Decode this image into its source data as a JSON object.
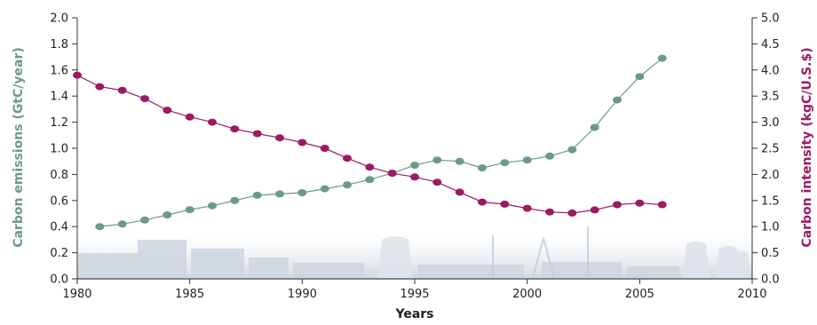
{
  "chart_data": {
    "type": "line",
    "xlabel": "Years",
    "xlim": [
      1980,
      2010
    ],
    "xticks": [
      1980,
      1985,
      1990,
      1995,
      2000,
      2005,
      2010
    ],
    "y_left": {
      "label": "Carbon emissions (GtC/year)",
      "lim": [
        0,
        2.0
      ],
      "ticks": [
        "0.0",
        "0.2",
        "0.4",
        "0.6",
        "0.8",
        "1.0",
        "1.2",
        "1.4",
        "1.6",
        "1.8",
        "2.0"
      ],
      "color": "#6b9a88"
    },
    "y_right": {
      "label": "Carbon intensity (kgC/U.S.$)",
      "lim": [
        0,
        5.0
      ],
      "ticks": [
        "0.0",
        "0.5",
        "1.0",
        "1.5",
        "2.0",
        "2.5",
        "3.0",
        "3.5",
        "4.0",
        "4.5",
        "5.0"
      ],
      "color": "#9c1a63"
    },
    "series": [
      {
        "axis": "left",
        "color": "#6b9a88",
        "x": [
          1981,
          1982,
          1983,
          1984,
          1985,
          1986,
          1987,
          1988,
          1989,
          1990,
          1991,
          1992,
          1993,
          1994,
          1995,
          1996,
          1997,
          1998,
          1999,
          2000,
          2001,
          2002,
          2003,
          2004,
          2005,
          2006
        ],
        "values": [
          0.4,
          0.42,
          0.45,
          0.49,
          0.53,
          0.56,
          0.6,
          0.64,
          0.65,
          0.66,
          0.69,
          0.72,
          0.76,
          0.81,
          0.87,
          0.91,
          0.9,
          0.85,
          0.89,
          0.91,
          0.94,
          0.99,
          1.16,
          1.37,
          1.55,
          1.69
        ]
      },
      {
        "axis": "right",
        "color": "#9c1a63",
        "x": [
          1980,
          1981,
          1982,
          1983,
          1984,
          1985,
          1986,
          1987,
          1988,
          1989,
          1990,
          1991,
          1992,
          1993,
          1994,
          1995,
          1996,
          1997,
          1998,
          1999,
          2000,
          2001,
          2002,
          2003,
          2004,
          2005,
          2006
        ],
        "values": [
          3.9,
          3.68,
          3.61,
          3.45,
          3.23,
          3.1,
          3.0,
          2.87,
          2.78,
          2.7,
          2.61,
          2.5,
          2.31,
          2.14,
          2.02,
          1.95,
          1.85,
          1.66,
          1.47,
          1.43,
          1.35,
          1.28,
          1.26,
          1.32,
          1.42,
          1.45,
          1.42
        ]
      }
    ]
  }
}
